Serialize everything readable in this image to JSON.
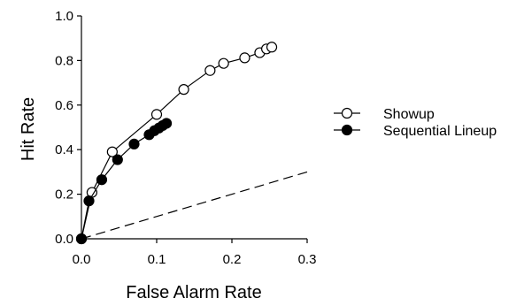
{
  "chart_data": {
    "type": "line",
    "xlabel": "False Alarm Rate",
    "ylabel": "Hit Rate",
    "xlim": [
      0.0,
      0.3
    ],
    "ylim": [
      0.0,
      1.0
    ],
    "x_ticks": [
      "0.0",
      "0.1",
      "0.2",
      "0.3"
    ],
    "y_ticks": [
      "0.0",
      "0.2",
      "0.4",
      "0.6",
      "0.8",
      "1.0"
    ],
    "grid": false,
    "legend_position": "right",
    "series": [
      {
        "name": "Showup",
        "marker": "open-circle",
        "color": "#000000",
        "x": [
          0.0,
          0.014,
          0.041,
          0.1,
          0.136,
          0.171,
          0.189,
          0.217,
          0.237,
          0.246,
          0.253
        ],
        "y": [
          0.0,
          0.208,
          0.39,
          0.558,
          0.67,
          0.755,
          0.787,
          0.812,
          0.835,
          0.852,
          0.86
        ]
      },
      {
        "name": "Sequential Lineup",
        "marker": "filled-circle",
        "color": "#000000",
        "x": [
          0.0,
          0.01,
          0.027,
          0.048,
          0.07,
          0.09,
          0.097,
          0.103,
          0.108,
          0.113
        ],
        "y": [
          0.0,
          0.17,
          0.265,
          0.355,
          0.425,
          0.467,
          0.485,
          0.497,
          0.508,
          0.518
        ]
      },
      {
        "marker": "none",
        "line_style": "dashed",
        "color": "#000000",
        "x": [
          0.0,
          0.3
        ],
        "y": [
          0.0,
          0.3
        ]
      }
    ]
  }
}
